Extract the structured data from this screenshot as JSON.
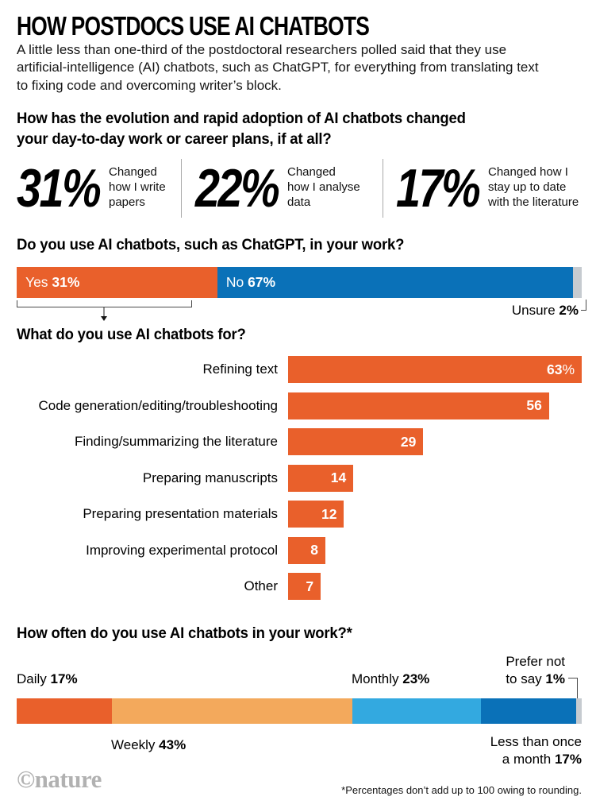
{
  "title": "HOW POSTDOCS USE AI CHATBOTS",
  "intro": "A little less than one-third of the postdoctoral researchers polled said that they use artificial-intelligence (AI) chatbots, such as ChatGPT, for everything from translating text to fixing code and overcoming writer’s block.",
  "colors": {
    "orange": "#E9602B",
    "light_orange": "#F3A95C",
    "blue": "#0A71B8",
    "light_blue": "#33A9E0",
    "gray": "#C6CBD0",
    "connector": "#4a4a4a",
    "logo_gray": "#B1B1B1"
  },
  "adoption": {
    "heading": "How has the evolution and rapid adoption of AI chatbots changed your day-to-day work or career plans, if at all?",
    "stats": [
      {
        "value": "31%",
        "lines": [
          "Changed",
          "how I write",
          "papers"
        ]
      },
      {
        "value": "22%",
        "lines": [
          "Changed",
          "how I analyse",
          "data"
        ]
      },
      {
        "value": "17%",
        "lines": [
          "Changed how I",
          "stay up to date",
          "with the literature"
        ]
      }
    ]
  },
  "usage": {
    "heading": "Do you use AI chatbots, such as ChatGPT, in your work?",
    "segments": [
      {
        "label": "Yes",
        "value": "31%",
        "pct": 31,
        "color": "#E9602B",
        "label_inside": true
      },
      {
        "label": "No",
        "value": "67%",
        "pct": 67,
        "color": "#0A71B8",
        "label_inside": true
      },
      {
        "label": "Unsure",
        "value": "2%",
        "pct": 2,
        "color": "#C6CBD0",
        "label_inside": false
      }
    ]
  },
  "purposes": {
    "heading": "What do you use AI chatbots for?",
    "max": 63,
    "rows": [
      {
        "label": "Refining text",
        "value": 63,
        "display": "63",
        "suffix": "%"
      },
      {
        "label": "Code generation/editing/troubleshooting",
        "value": 56,
        "display": "56",
        "suffix": ""
      },
      {
        "label": "Finding/summarizing the literature",
        "value": 29,
        "display": "29",
        "suffix": ""
      },
      {
        "label": "Preparing manuscripts",
        "value": 14,
        "display": "14",
        "suffix": ""
      },
      {
        "label": "Preparing presentation materials",
        "value": 12,
        "display": "12",
        "suffix": ""
      },
      {
        "label": "Improving experimental protocol",
        "value": 8,
        "display": "8",
        "suffix": ""
      },
      {
        "label": "Other",
        "value": 7,
        "display": "7",
        "suffix": ""
      }
    ]
  },
  "frequency": {
    "heading": "How often do you use AI chatbots in your work?*",
    "segments": [
      {
        "label": "Daily",
        "value": "17%",
        "pct": 17,
        "color": "#E9602B"
      },
      {
        "label": "Weekly",
        "value": "43%",
        "pct": 43,
        "color": "#F3A95C"
      },
      {
        "label": "Monthly",
        "value": "23%",
        "pct": 23,
        "color": "#33A9E0"
      },
      {
        "label": "Less than once a month",
        "lines": [
          "Less than once",
          "a month"
        ],
        "value": "17%",
        "pct": 17,
        "color": "#0A71B8"
      },
      {
        "label": "Prefer not to say",
        "lines": [
          "Prefer not",
          "to say"
        ],
        "value": "1%",
        "pct": 1,
        "color": "#C6CBD0"
      }
    ]
  },
  "brand": {
    "logo_symbol": "©",
    "logo_text": "nature",
    "footnote": "*Percentages don’t add up to 100 owing to rounding."
  },
  "chart_data": [
    {
      "type": "bar",
      "variant": "big-number-stats",
      "title": "How has the evolution and rapid adoption of AI chatbots changed your day-to-day work or career plans, if at all?",
      "categories": [
        "Changed how I write papers",
        "Changed how I analyse data",
        "Changed how I stay up to date with the literature"
      ],
      "values": [
        31,
        22,
        17
      ],
      "unit": "%"
    },
    {
      "type": "bar",
      "variant": "stacked-horizontal-single",
      "title": "Do you use AI chatbots, such as ChatGPT, in your work?",
      "categories": [
        "Yes",
        "No",
        "Unsure"
      ],
      "values": [
        31,
        67,
        2
      ],
      "unit": "%",
      "colors": [
        "#E9602B",
        "#0A71B8",
        "#C6CBD0"
      ]
    },
    {
      "type": "bar",
      "variant": "horizontal",
      "title": "What do you use AI chatbots for?",
      "categories": [
        "Refining text",
        "Code generation/editing/troubleshooting",
        "Finding/summarizing the literature",
        "Preparing manuscripts",
        "Preparing presentation materials",
        "Improving experimental protocol",
        "Other"
      ],
      "values": [
        63,
        56,
        29,
        14,
        12,
        8,
        7
      ],
      "unit": "%",
      "xlim": [
        0,
        63
      ],
      "bar_color": "#E9602B",
      "value_label_position": "inside-right"
    },
    {
      "type": "bar",
      "variant": "stacked-horizontal-single",
      "title": "How often do you use AI chatbots in your work?*",
      "categories": [
        "Daily",
        "Weekly",
        "Monthly",
        "Less than once a month",
        "Prefer not to say"
      ],
      "values": [
        17,
        43,
        23,
        17,
        1
      ],
      "unit": "%",
      "colors": [
        "#E9602B",
        "#F3A95C",
        "#33A9E0",
        "#0A71B8",
        "#C6CBD0"
      ],
      "footnote": "*Percentages don’t add up to 100 owing to rounding."
    }
  ]
}
